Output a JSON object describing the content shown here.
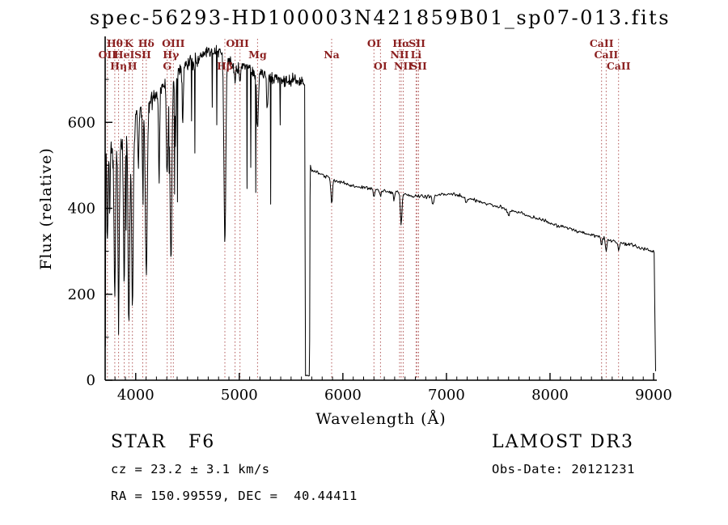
{
  "header": {
    "title": "spec-56293-HD100003N421859B01_sp07-013.fits"
  },
  "footer": {
    "classification": "STAR   F6",
    "survey": "LAMOST DR3",
    "cz": "cz = 23.2 ± 3.1 km/s",
    "obs_date": "Obs-Date: 20121231",
    "radec": "RA = 150.99559, DEC =  40.44411"
  },
  "chart_data": {
    "type": "line",
    "title": "spec-56293-HD100003N421859B01_sp07-013.fits",
    "xlabel": "Wavelength (Å)",
    "ylabel": "Flux (relative)",
    "xlim": [
      3705,
      9031
    ],
    "ylim": [
      0,
      800
    ],
    "xticks": [
      4000,
      5000,
      6000,
      7000,
      8000,
      9000
    ],
    "yticks": [
      0,
      200,
      400,
      600
    ],
    "grid": false,
    "legend": false,
    "colors": {
      "spectrum": "#000000",
      "feature_line": "#b05555",
      "feature_label": "#8b1f1f",
      "axis": "#000000",
      "tick_label": "#000000"
    },
    "noise_seed": 20121231,
    "gap": [
      5635,
      5682
    ],
    "line_markers": [
      {
        "label": "Hθ",
        "row": 0,
        "lines": [
          3798
        ]
      },
      {
        "label": "K",
        "row": 0,
        "lines": [
          3934
        ]
      },
      {
        "label": "Hδ",
        "row": 0,
        "lines": [
          4102
        ]
      },
      {
        "label": "OIII",
        "row": 0,
        "lines": [
          4363
        ]
      },
      {
        "label": "OIII",
        "row": 0,
        "lines": [
          4959,
          5007
        ]
      },
      {
        "label": "OI",
        "row": 0,
        "lines": [
          6300
        ]
      },
      {
        "label": "Hα",
        "row": 0,
        "lines": [
          6563
        ]
      },
      {
        "label": "SII",
        "row": 0,
        "lines": [
          6716
        ]
      },
      {
        "label": "CaII",
        "row": 0,
        "lines": [
          8498
        ]
      },
      {
        "label": "OII",
        "row": 1,
        "lines": [
          3727
        ]
      },
      {
        "label": "HeI",
        "row": 1,
        "lines": [
          3889
        ]
      },
      {
        "label": "SII",
        "row": 1,
        "lines": [
          4068
        ]
      },
      {
        "label": "Hγ",
        "row": 1,
        "lines": [
          4340
        ]
      },
      {
        "label": "Mg",
        "row": 1,
        "lines": [
          5176
        ]
      },
      {
        "label": "Na",
        "row": 1,
        "lines": [
          5892
        ]
      },
      {
        "label": "NII",
        "row": 1,
        "lines": [
          6548
        ]
      },
      {
        "label": "Li",
        "row": 1,
        "lines": [
          6707
        ]
      },
      {
        "label": "CaII",
        "row": 1,
        "lines": [
          8542
        ]
      },
      {
        "label": "Hη",
        "row": 2,
        "lines": [
          3835
        ]
      },
      {
        "label": "H",
        "row": 2,
        "lines": [
          3968
        ]
      },
      {
        "label": "G",
        "row": 2,
        "lines": [
          4304
        ]
      },
      {
        "label": "Hβ",
        "row": 2,
        "lines": [
          4861
        ]
      },
      {
        "label": "OI",
        "row": 2,
        "lines": [
          6363
        ]
      },
      {
        "label": "NII",
        "row": 2,
        "lines": [
          6583
        ]
      },
      {
        "label": "SII",
        "row": 2,
        "lines": [
          6731
        ]
      },
      {
        "label": "CaII",
        "row": 2,
        "lines": [
          8662
        ]
      }
    ],
    "continuum": [
      [
        3705,
        80
      ],
      [
        3708,
        80
      ],
      [
        3711,
        530
      ],
      [
        3725,
        480
      ],
      [
        3745,
        540
      ],
      [
        3775,
        520
      ],
      [
        3815,
        545
      ],
      [
        3860,
        560
      ],
      [
        3910,
        575
      ],
      [
        3955,
        560
      ],
      [
        4005,
        610
      ],
      [
        4060,
        640
      ],
      [
        4120,
        640
      ],
      [
        4180,
        660
      ],
      [
        4260,
        680
      ],
      [
        4340,
        695
      ],
      [
        4420,
        720
      ],
      [
        4500,
        735
      ],
      [
        4580,
        745
      ],
      [
        4660,
        760
      ],
      [
        4740,
        765
      ],
      [
        4820,
        765
      ],
      [
        4900,
        745
      ],
      [
        4980,
        725
      ],
      [
        5060,
        735
      ],
      [
        5140,
        715
      ],
      [
        5220,
        715
      ],
      [
        5300,
        705
      ],
      [
        5380,
        700
      ],
      [
        5460,
        695
      ],
      [
        5540,
        700
      ],
      [
        5600,
        695
      ],
      [
        5632,
        690
      ],
      [
        5638,
        12
      ],
      [
        5678,
        10
      ],
      [
        5684,
        505
      ],
      [
        5700,
        488
      ],
      [
        5760,
        482
      ],
      [
        5850,
        472
      ],
      [
        5950,
        462
      ],
      [
        6050,
        456
      ],
      [
        6150,
        450
      ],
      [
        6250,
        447
      ],
      [
        6350,
        442
      ],
      [
        6450,
        438
      ],
      [
        6550,
        436
      ],
      [
        6650,
        430
      ],
      [
        6750,
        428
      ],
      [
        6850,
        428
      ],
      [
        6950,
        432
      ],
      [
        7050,
        434
      ],
      [
        7150,
        428
      ],
      [
        7250,
        420
      ],
      [
        7350,
        413
      ],
      [
        7450,
        407
      ],
      [
        7550,
        400
      ],
      [
        7650,
        393
      ],
      [
        7750,
        385
      ],
      [
        7850,
        378
      ],
      [
        7950,
        370
      ],
      [
        8050,
        362
      ],
      [
        8150,
        355
      ],
      [
        8250,
        348
      ],
      [
        8350,
        341
      ],
      [
        8450,
        335
      ],
      [
        8550,
        328
      ],
      [
        8650,
        322
      ],
      [
        8750,
        316
      ],
      [
        8850,
        310
      ],
      [
        8950,
        303
      ],
      [
        9000,
        298
      ],
      [
        9006,
        295
      ],
      [
        9012,
        150
      ],
      [
        9016,
        20
      ]
    ],
    "absorption_lines": [
      [
        3727,
        0.35,
        5
      ],
      [
        3750,
        0.3,
        4
      ],
      [
        3798,
        0.62,
        7
      ],
      [
        3835,
        0.65,
        7
      ],
      [
        3889,
        0.62,
        7
      ],
      [
        3934,
        0.74,
        8
      ],
      [
        3968,
        0.68,
        8
      ],
      [
        4026,
        0.2,
        5
      ],
      [
        4068,
        0.25,
        5
      ],
      [
        4102,
        0.62,
        9
      ],
      [
        4226,
        0.3,
        5
      ],
      [
        4304,
        0.3,
        8
      ],
      [
        4340,
        0.6,
        9
      ],
      [
        4383,
        0.22,
        5
      ],
      [
        4455,
        0.18,
        5
      ],
      [
        4861,
        0.58,
        9
      ],
      [
        4959,
        0.05,
        5
      ],
      [
        5007,
        0.05,
        5
      ],
      [
        5176,
        0.18,
        8
      ],
      [
        5270,
        0.12,
        6
      ],
      [
        5892,
        0.13,
        7
      ],
      [
        6300,
        0.04,
        5
      ],
      [
        6363,
        0.03,
        5
      ],
      [
        6494,
        0.05,
        5
      ],
      [
        6563,
        0.18,
        7
      ],
      [
        6870,
        0.05,
        8
      ],
      [
        7190,
        0.03,
        8
      ],
      [
        7600,
        0.04,
        8
      ],
      [
        8498,
        0.06,
        6
      ],
      [
        8542,
        0.09,
        7
      ],
      [
        8662,
        0.07,
        6
      ]
    ]
  }
}
